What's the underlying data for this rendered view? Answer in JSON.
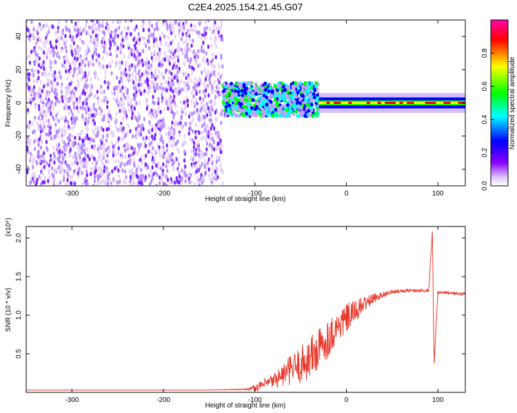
{
  "title": "C2E4.2025.154.21.45.G07",
  "chart_data": [
    {
      "type": "heatmap",
      "xlabel": "Height of straight line (km)",
      "ylabel": "Frequency (Hz)",
      "xlim": [
        -350,
        130
      ],
      "ylim": [
        -50,
        50
      ],
      "x_ticks": [
        -300,
        -200,
        -100,
        0,
        100
      ],
      "y_ticks": [
        -40,
        -20,
        0,
        20,
        40
      ],
      "grid": false,
      "colorbar": {
        "label": "Normalized spectral amplitude",
        "range": [
          0,
          1
        ],
        "ticks": [
          "0.0",
          "0.2",
          "0.4",
          "0.6",
          "0.8"
        ],
        "colormap": "rainbow-white",
        "colors": [
          "#ffffff",
          "#8800ff",
          "#0000ff",
          "#00ffff",
          "#00ff00",
          "#ffff00",
          "#ff0000",
          "#ff00aa"
        ]
      },
      "regions": [
        {
          "x_range": [
            -350,
            -135
          ],
          "frequency_range": [
            -50,
            50
          ],
          "amplitude": "scattered speckle 0.0-0.2"
        },
        {
          "x_range": [
            -135,
            -30
          ],
          "frequency_range": [
            -8,
            12
          ],
          "amplitude": "band up to 0.5"
        },
        {
          "x_range": [
            -30,
            130
          ],
          "frequency_center": 0,
          "frequency_width": 6,
          "amplitude": "narrow line 0.8-1.0"
        }
      ]
    },
    {
      "type": "line",
      "xlabel": "Height of straight line (km)",
      "ylabel": "SNR (10 * v/v)",
      "y_multiplier": "(x10⁴)",
      "xlim": [
        -350,
        130
      ],
      "ylim": [
        0,
        2.15
      ],
      "x_ticks": [
        -300,
        -200,
        -100,
        0,
        100
      ],
      "y_ticks": [
        0.5,
        1.0,
        1.5,
        2.0
      ],
      "grid": false,
      "series": [
        {
          "color": "#e8392c",
          "x": [
            -350,
            -300,
            -250,
            -200,
            -150,
            -110,
            -100,
            -90,
            -80,
            -70,
            -60,
            -50,
            -40,
            -30,
            -20,
            -10,
            0,
            10,
            20,
            30,
            40,
            50,
            60,
            70,
            80,
            90,
            94,
            96,
            100,
            110,
            120,
            130
          ],
          "y": [
            0.03,
            0.03,
            0.03,
            0.03,
            0.03,
            0.04,
            0.06,
            0.1,
            0.15,
            0.22,
            0.3,
            0.35,
            0.45,
            0.55,
            0.7,
            0.85,
            0.95,
            1.05,
            1.15,
            1.22,
            1.27,
            1.3,
            1.31,
            1.32,
            1.32,
            1.32,
            2.1,
            0.35,
            1.29,
            1.29,
            1.28,
            1.27
          ],
          "noise": [
            0,
            0,
            0,
            0,
            0,
            0.01,
            0.04,
            0.07,
            0.1,
            0.15,
            0.2,
            0.25,
            0.3,
            0.3,
            0.25,
            0.2,
            0.2,
            0.15,
            0.1,
            0.06,
            0.04,
            0.03,
            0.02,
            0.02,
            0.02,
            0.02,
            0.05,
            0.05,
            0.02,
            0.02,
            0.02,
            0.02
          ]
        }
      ]
    }
  ]
}
